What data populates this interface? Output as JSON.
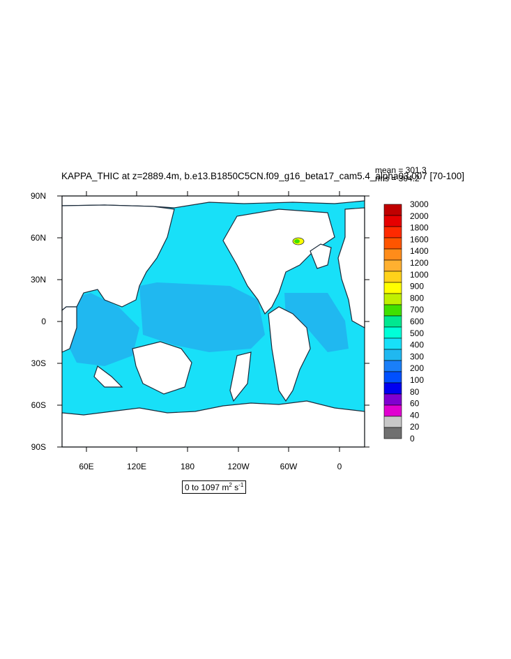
{
  "title": "KAPPA_THIC at z=2889.4m, b.e13.B1850C5CN.f09_g16_beta17_cam5.4_alpha03.007 [70-100]",
  "stats": {
    "mean": "mean = 301.3",
    "rms": "rms = 304.2"
  },
  "lat_labels": [
    "90N",
    "60N",
    "30N",
    "0",
    "30S",
    "60S",
    "90S"
  ],
  "lon_labels": [
    "60E",
    "120E",
    "180",
    "120W",
    "60W",
    "0"
  ],
  "range_label": {
    "prefix": "0 to 1097 m",
    "exp1": "2",
    "middle": " s",
    "exp2": "-1"
  },
  "colorbar": {
    "labels": [
      "3000",
      "2000",
      "1800",
      "1600",
      "1400",
      "1200",
      "1000",
      "900",
      "800",
      "700",
      "600",
      "500",
      "400",
      "300",
      "200",
      "100",
      "80",
      "60",
      "40",
      "20",
      "0"
    ],
    "colors": [
      "#c00000",
      "#e60000",
      "#ff2a00",
      "#ff5500",
      "#ff8c1a",
      "#ffb030",
      "#ffd21a",
      "#ffff00",
      "#c0f000",
      "#40e000",
      "#00e890",
      "#00ffd8",
      "#18e0f8",
      "#20b8f0",
      "#1a7ff8",
      "#0050ff",
      "#0000f0",
      "#8000d0",
      "#e000d0",
      "#c8c8c8",
      "#707070"
    ]
  },
  "colors": {
    "land": "#ffffff",
    "ocean_300_400": "#18e0f8",
    "ocean_200_300": "#20b8f0",
    "coast": "#1a2a3a"
  }
}
